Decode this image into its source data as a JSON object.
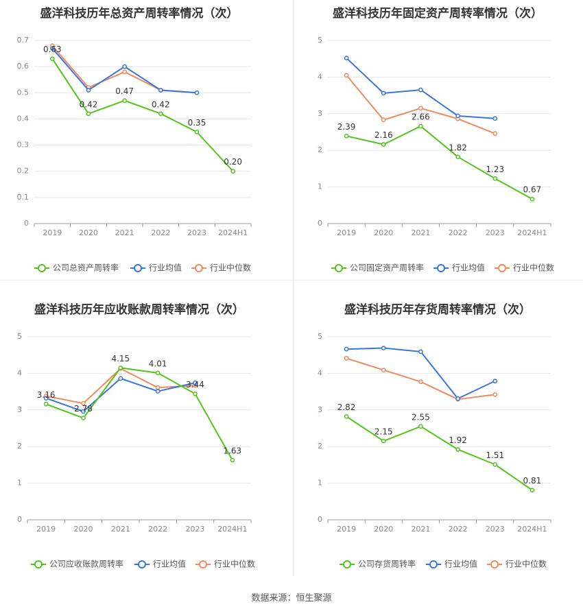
{
  "source": "数据来源：恒生聚源",
  "colors": {
    "company": "#52c41a",
    "avg": "#3b74de",
    "median": "#f08a5d",
    "grid": "#e6e6e6",
    "axis": "#888888",
    "title": "#333333"
  },
  "chart_data": [
    {
      "type": "line",
      "title": "盛洋科技历年总资产周转率情况（次）",
      "categories": [
        "2019",
        "2020",
        "2021",
        "2022",
        "2023",
        "2024H1"
      ],
      "ylim": [
        0,
        0.7
      ],
      "yticks": [
        "0",
        "0.1",
        "0.2",
        "0.3",
        "0.4",
        "0.5",
        "0.6",
        "0.7"
      ],
      "grid": true,
      "legend": "bottom",
      "series": [
        {
          "name": "公司总资产周转率",
          "values": [
            0.63,
            0.42,
            0.47,
            0.42,
            0.35,
            0.2
          ],
          "labels": [
            "0.63",
            "0.42",
            "0.47",
            "0.42",
            "0.35",
            "0.20"
          ]
        },
        {
          "name": "行业均值",
          "values": [
            0.67,
            0.51,
            0.6,
            0.51,
            0.5,
            null
          ]
        },
        {
          "name": "行业中位数",
          "values": [
            0.68,
            0.52,
            0.58,
            0.51,
            0.5,
            null
          ]
        }
      ]
    },
    {
      "type": "line",
      "title": "盛洋科技历年固定资产周转率情况（次）",
      "categories": [
        "2019",
        "2020",
        "2021",
        "2022",
        "2023",
        "2024H1"
      ],
      "ylim": [
        0,
        5
      ],
      "yticks": [
        "0",
        "1",
        "2",
        "3",
        "4",
        "5"
      ],
      "grid": true,
      "legend": "bottom",
      "series": [
        {
          "name": "公司固定资产周转率",
          "values": [
            2.39,
            2.16,
            2.66,
            1.82,
            1.23,
            0.67
          ],
          "labels": [
            "2.39",
            "2.16",
            "2.66",
            "1.82",
            "1.23",
            "0.67"
          ]
        },
        {
          "name": "行业均值",
          "values": [
            4.52,
            3.56,
            3.65,
            2.94,
            2.87,
            null
          ]
        },
        {
          "name": "行业中位数",
          "values": [
            4.05,
            2.83,
            3.15,
            2.86,
            2.46,
            null
          ]
        }
      ]
    },
    {
      "type": "line",
      "title": "盛洋科技历年应收账款周转率情况（次）",
      "categories": [
        "2019",
        "2020",
        "2021",
        "2022",
        "2023",
        "2024H1"
      ],
      "ylim": [
        0,
        5
      ],
      "yticks": [
        "0",
        "1",
        "2",
        "3",
        "4",
        "5"
      ],
      "grid": true,
      "legend": "bottom",
      "series": [
        {
          "name": "公司应收账款周转率",
          "values": [
            3.16,
            2.78,
            4.15,
            4.01,
            3.44,
            1.63
          ],
          "labels": [
            "3.16",
            "2.78",
            "4.15",
            "4.01",
            "3.44",
            "1.63"
          ]
        },
        {
          "name": "行业均值",
          "values": [
            3.32,
            2.96,
            3.86,
            3.51,
            3.74,
            null
          ]
        },
        {
          "name": "行业中位数",
          "values": [
            3.38,
            3.18,
            4.13,
            3.61,
            3.67,
            null
          ]
        }
      ]
    },
    {
      "type": "line",
      "title": "盛洋科技历年存货周转率情况（次）",
      "categories": [
        "2019",
        "2020",
        "2021",
        "2022",
        "2023",
        "2024H1"
      ],
      "ylim": [
        0,
        5
      ],
      "yticks": [
        "0",
        "1",
        "2",
        "3",
        "4",
        "5"
      ],
      "grid": true,
      "legend": "bottom",
      "series": [
        {
          "name": "公司存货周转率",
          "values": [
            2.82,
            2.15,
            2.55,
            1.92,
            1.51,
            0.81
          ],
          "labels": [
            "2.82",
            "2.15",
            "2.55",
            "1.92",
            "1.51",
            "0.81"
          ]
        },
        {
          "name": "行业均值",
          "values": [
            4.66,
            4.69,
            4.59,
            3.31,
            3.79,
            null
          ]
        },
        {
          "name": "行业中位数",
          "values": [
            4.41,
            4.09,
            3.77,
            3.29,
            3.42,
            null
          ]
        }
      ]
    }
  ]
}
